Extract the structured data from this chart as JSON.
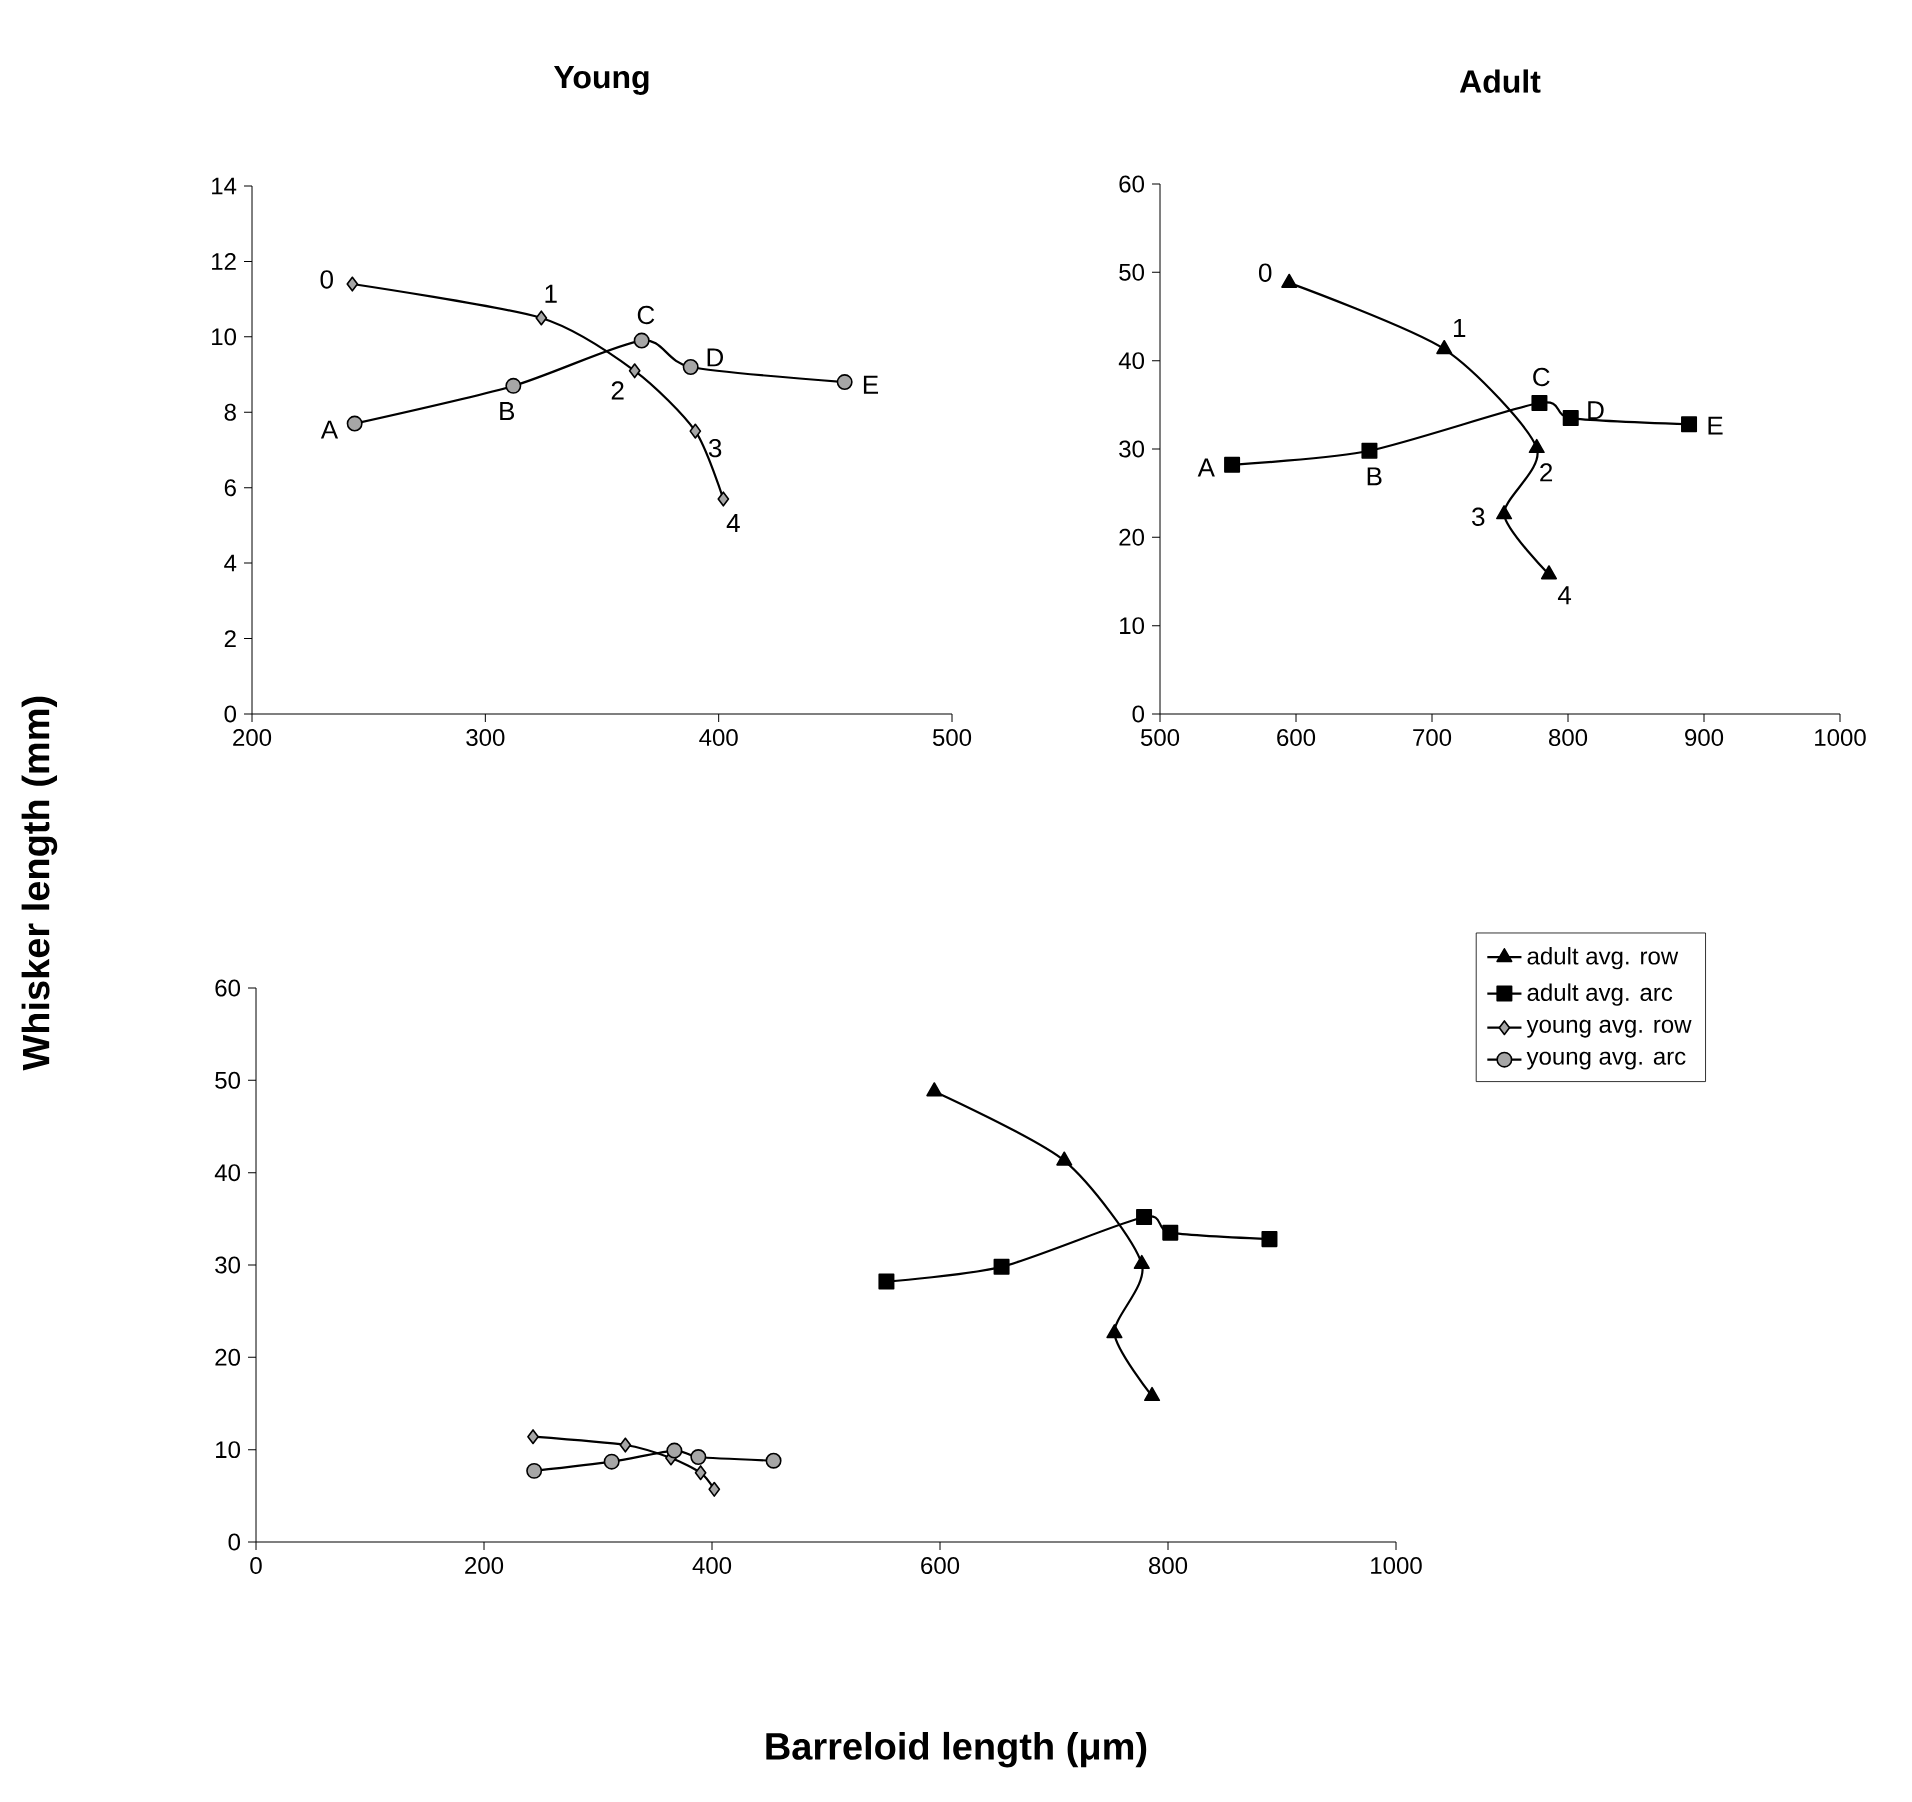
{
  "chart_data": [
    {
      "type": "line",
      "title": "Young",
      "xlim": [
        200,
        500
      ],
      "xticks": [
        200,
        300,
        400,
        500
      ],
      "ylim": [
        0,
        14
      ],
      "yticks": [
        0,
        2,
        4,
        6,
        8,
        10,
        12,
        14
      ],
      "line_style": "solid",
      "series": [
        {
          "color": "#a6a6a6",
          "marker": "diamond",
          "x": [
            243,
            324,
            364,
            390,
            402
          ],
          "values": [
            11.4,
            10.5,
            9.1,
            7.5,
            5.7
          ]
        },
        {
          "color": "#a6a6a6",
          "marker": "circle",
          "x": [
            244,
            312,
            367,
            388,
            454
          ],
          "values": [
            7.7,
            8.7,
            9.9,
            9.2,
            8.8
          ]
        }
      ],
      "annotations": [
        {
          "text": "0",
          "x": 243,
          "y": 11.4
        },
        {
          "text": "1",
          "x": 324,
          "y": 10.5
        },
        {
          "text": "2",
          "x": 364,
          "y": 9.1
        },
        {
          "text": "3",
          "x": 390,
          "y": 7.5
        },
        {
          "text": "4",
          "x": 402,
          "y": 5.7
        },
        {
          "text": "A",
          "x": 244,
          "y": 7.7
        },
        {
          "text": "B",
          "x": 312,
          "y": 8.7
        },
        {
          "text": "C",
          "x": 367,
          "y": 9.9
        },
        {
          "text": "D",
          "x": 388,
          "y": 9.2
        },
        {
          "text": "E",
          "x": 454,
          "y": 8.8
        }
      ]
    },
    {
      "type": "line",
      "title": "Adult",
      "xlim": [
        500,
        1000
      ],
      "xticks": [
        500,
        600,
        700,
        800,
        900,
        1000
      ],
      "ylim": [
        0,
        60
      ],
      "yticks": [
        0,
        10,
        20,
        30,
        40,
        50,
        60
      ],
      "line_style": "solid",
      "series": [
        {
          "color": "#000000",
          "marker": "triangle",
          "x": [
            595,
            709,
            777,
            753,
            786
          ],
          "values": [
            48.8,
            41.3,
            30.1,
            22.6,
            15.8
          ]
        },
        {
          "color": "#000000",
          "marker": "square",
          "x": [
            553,
            654,
            779,
            802,
            889
          ],
          "values": [
            28.2,
            29.8,
            35.2,
            33.5,
            32.8
          ]
        }
      ],
      "annotations": [
        {
          "text": "0",
          "x": 595,
          "y": 48.8
        },
        {
          "text": "1",
          "x": 709,
          "y": 41.3
        },
        {
          "text": "2",
          "x": 777,
          "y": 30.1
        },
        {
          "text": "3",
          "x": 753,
          "y": 22.6
        },
        {
          "text": "4",
          "x": 786,
          "y": 15.8
        },
        {
          "text": "A",
          "x": 553,
          "y": 28.2
        },
        {
          "text": "B",
          "x": 654,
          "y": 29.8
        },
        {
          "text": "C",
          "x": 779,
          "y": 35.2
        },
        {
          "text": "D",
          "x": 802,
          "y": 33.5
        },
        {
          "text": "E",
          "x": 889,
          "y": 32.8
        }
      ]
    },
    {
      "type": "line",
      "xlabel": "Barreloid length (μm)",
      "ylabel": "Whisker length (mm)",
      "xlim": [
        0,
        1000
      ],
      "xticks": [
        0,
        200,
        400,
        600,
        800,
        1000
      ],
      "ylim": [
        0,
        60
      ],
      "yticks": [
        0,
        10,
        20,
        30,
        40,
        50,
        60
      ],
      "line_style": "solid",
      "legend": "right",
      "series": [
        {
          "name": "adult avg. row",
          "color": "#000000",
          "marker": "triangle",
          "x": [
            595,
            709,
            777,
            753,
            786
          ],
          "values": [
            48.8,
            41.3,
            30.1,
            22.6,
            15.8
          ]
        },
        {
          "name": "adult avg. arc",
          "color": "#000000",
          "marker": "square",
          "x": [
            553,
            654,
            779,
            802,
            889
          ],
          "values": [
            28.2,
            29.8,
            35.2,
            33.5,
            32.8
          ]
        },
        {
          "name": "young avg. row",
          "color": "#a6a6a6",
          "marker": "diamond",
          "x": [
            243,
            324,
            364,
            390,
            402
          ],
          "values": [
            11.4,
            10.5,
            9.1,
            7.5,
            5.7
          ]
        },
        {
          "name": "young avg. arc",
          "color": "#a6a6a6",
          "marker": "circle",
          "x": [
            244,
            312,
            367,
            388,
            454
          ],
          "values": [
            7.7,
            8.7,
            9.9,
            9.2,
            8.8
          ]
        }
      ]
    }
  ]
}
